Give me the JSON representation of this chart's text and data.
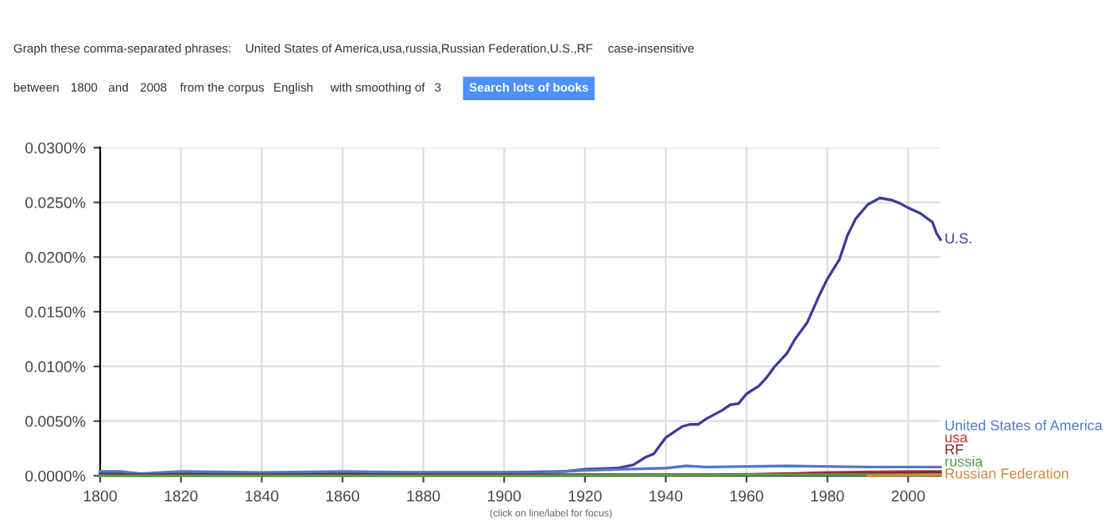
{
  "chart_data": {
    "type": "line",
    "annotations": [
      "Graph these comma-separated phrases:",
      "United States of America,usa,russia,Russian Federation,U.S.,RF",
      "case-insensitive",
      "between",
      "1800",
      "and",
      "2008",
      "from the corpus",
      "English",
      "with smoothing of",
      "3",
      "Search lots of books",
      "(click on line/label for focus)"
    ],
    "xlim": [
      1800,
      2008
    ],
    "xticks": [
      1800,
      1820,
      1840,
      1860,
      1880,
      1900,
      1920,
      1940,
      1960,
      1980,
      2000
    ],
    "ylim": [
      0,
      0.03
    ],
    "yticks": [
      {
        "value": 0,
        "label": "0.0000%"
      },
      {
        "value": 0.005,
        "label": "0.0050%"
      },
      {
        "value": 0.01,
        "label": "0.0100%"
      },
      {
        "value": 0.015,
        "label": "0.0150%"
      },
      {
        "value": 0.02,
        "label": "0.0200%"
      },
      {
        "value": 0.025,
        "label": "0.0250%"
      },
      {
        "value": 0.03,
        "label": "0.0300%"
      }
    ],
    "grid": true,
    "legend": false,
    "series": [
      {
        "name": "U.S.",
        "color": "#3b3b99",
        "x": [
          1800,
          1820,
          1850,
          1880,
          1900,
          1915,
          1920,
          1928,
          1932,
          1935,
          1937,
          1940,
          1944,
          1946,
          1948,
          1950,
          1954,
          1956,
          1958,
          1960,
          1963,
          1965,
          1967,
          1970,
          1972,
          1975,
          1978,
          1980,
          1983,
          1985,
          1987,
          1990,
          1993,
          1996,
          1998,
          2000,
          2003,
          2006,
          2007,
          2008
        ],
        "values": [
          0.0002,
          0.0002,
          0.0002,
          0.0003,
          0.0003,
          0.0004,
          0.0006,
          0.0007,
          0.001,
          0.0017,
          0.002,
          0.0035,
          0.0045,
          0.0047,
          0.0047,
          0.0052,
          0.006,
          0.0065,
          0.0066,
          0.0075,
          0.0082,
          0.009,
          0.01,
          0.0112,
          0.0125,
          0.014,
          0.0165,
          0.018,
          0.0198,
          0.022,
          0.0235,
          0.0248,
          0.0254,
          0.0252,
          0.0249,
          0.0245,
          0.024,
          0.0232,
          0.0222,
          0.0216
        ]
      },
      {
        "name": "United States of America",
        "color": "#5078c8",
        "x": [
          1800,
          1805,
          1810,
          1820,
          1840,
          1860,
          1880,
          1900,
          1910,
          1920,
          1930,
          1940,
          1945,
          1950,
          1970,
          1990,
          2008
        ],
        "values": [
          0.0004,
          0.0004,
          0.0002,
          0.0004,
          0.0003,
          0.0004,
          0.0003,
          0.0003,
          0.0003,
          0.0005,
          0.0006,
          0.0007,
          0.0009,
          0.0008,
          0.0009,
          0.0008,
          0.0008
        ]
      },
      {
        "name": "usa",
        "color": "#c0392b",
        "x": [
          1960,
          1980,
          2000,
          2008
        ],
        "values": [
          0.0001,
          0.0003,
          0.0004,
          0.0004
        ]
      },
      {
        "name": "RF",
        "color": "#7b2a2a",
        "x": [
          1800,
          1900,
          1950,
          1980,
          2008
        ],
        "values": [
          0.0001,
          0.0001,
          0.0001,
          0.0002,
          0.0003
        ]
      },
      {
        "name": "russia",
        "color": "#5a9a4a",
        "x": [
          1800,
          1900,
          1960,
          2008
        ],
        "values": [
          0.0,
          0.0,
          0.0001,
          0.0001
        ]
      },
      {
        "name": "Russian Federation",
        "color": "#d2883a",
        "x": [
          1990,
          2008
        ],
        "values": [
          0.0,
          0.0001
        ]
      }
    ]
  }
}
